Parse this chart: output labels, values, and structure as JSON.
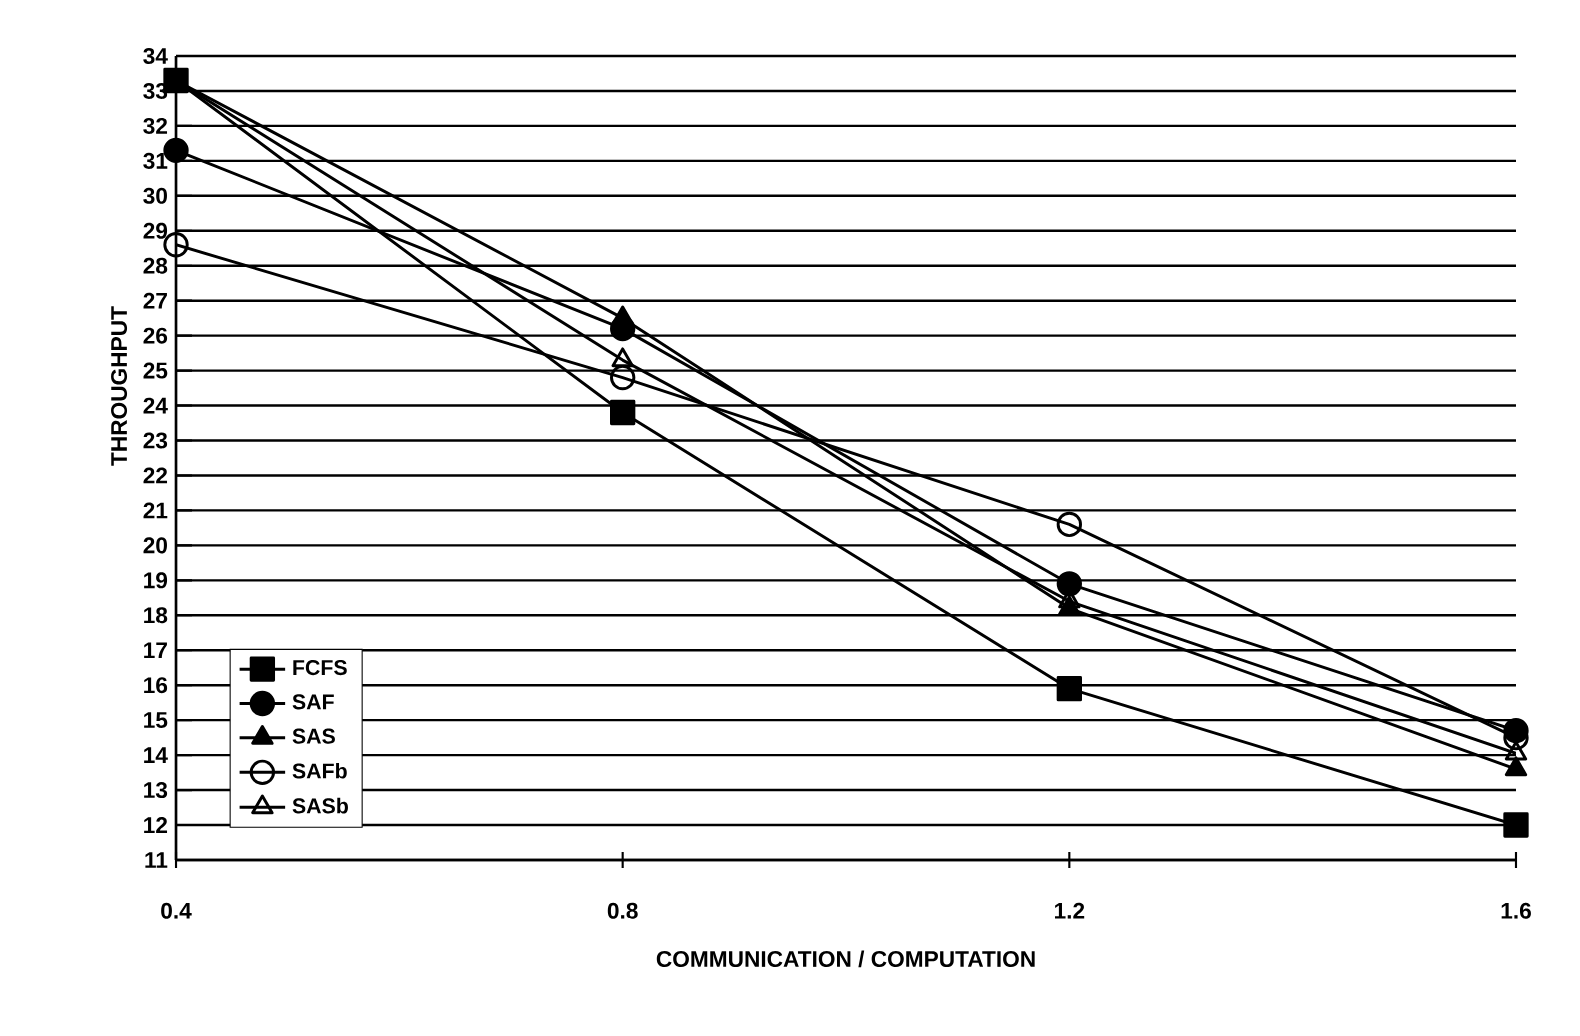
{
  "chart_data": {
    "type": "line",
    "xlabel": "COMMUNICATION / COMPUTATION",
    "ylabel": "THROUGHPUT",
    "x": [
      0.4,
      0.8,
      1.2,
      1.6
    ],
    "xlim": [
      0.4,
      1.6
    ],
    "xticks": [
      0.4,
      0.8,
      1.2,
      1.6
    ],
    "ylim": [
      11,
      34
    ],
    "yticks": [
      11,
      12,
      13,
      14,
      15,
      16,
      17,
      18,
      19,
      20,
      21,
      22,
      23,
      24,
      25,
      26,
      27,
      28,
      29,
      30,
      31,
      32,
      33,
      34
    ],
    "grid": "y",
    "legend": "bottom left",
    "line_style": "solid",
    "series": [
      {
        "name": "FCFS",
        "color": "#000000",
        "marker": "square",
        "values": [
          33.3,
          23.8,
          15.9,
          12.0
        ]
      },
      {
        "name": "SAF",
        "color": "#000000",
        "marker": "circle",
        "values": [
          31.3,
          26.2,
          18.9,
          14.7
        ]
      },
      {
        "name": "SAS",
        "color": "#000000",
        "marker": "triangle",
        "values": [
          33.3,
          26.5,
          18.2,
          13.6
        ]
      },
      {
        "name": "SAFb",
        "color": "#000000",
        "marker": "circle",
        "values": [
          28.6,
          24.8,
          20.6,
          14.5
        ]
      },
      {
        "name": "SASb",
        "color": "#000000",
        "marker": "triangle",
        "values": [
          33.3,
          25.3,
          18.4,
          14.05
        ]
      }
    ]
  }
}
